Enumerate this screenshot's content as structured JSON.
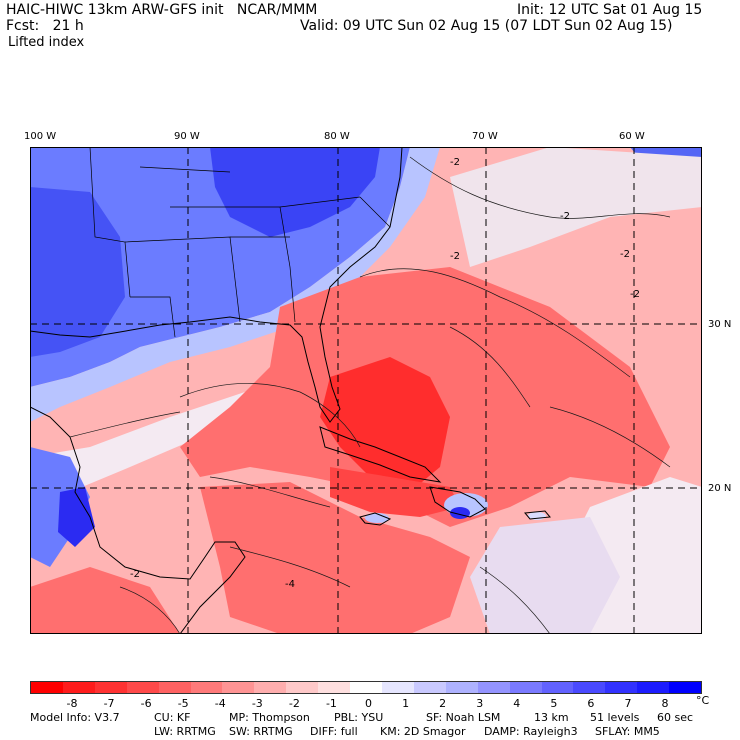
{
  "header": {
    "title_left": "HAIC-HIWC 13km ARW-GFS init   NCAR/MMM",
    "init": "Init: 12 UTC Sat 01 Aug 15",
    "fcst": "Fcst:   21 h",
    "valid": "Valid: 09 UTC Sun 02 Aug 15 (07 LDT Sun 02 Aug 15)",
    "field": "Lifted index"
  },
  "map": {
    "lon_labels": [
      "100 W",
      "90 W",
      "80 W",
      "70 W",
      "60 W"
    ],
    "lat_labels": [
      "30 N",
      "20 N"
    ],
    "contour_labels": [
      "-2",
      "-2",
      "-2",
      "-2",
      "-2",
      "-2",
      "-4"
    ],
    "colors": {
      "strong_red": "#ff2d2d",
      "mid_red": "#ff6f6f",
      "light_red": "#ffb4b4",
      "neutral": "#f4eaf2",
      "light_blue": "#b8c4ff",
      "mid_blue": "#6b7cff",
      "strong_blue": "#2b2bf2"
    }
  },
  "colorbar": {
    "labels": [
      "-8",
      "-7",
      "-6",
      "-5",
      "-4",
      "-3",
      "-2",
      "-1",
      "0",
      "1",
      "2",
      "3",
      "4",
      "5",
      "6",
      "7",
      "8"
    ],
    "unit": "°C",
    "colors": [
      "#ff0000",
      "#ff1c1c",
      "#ff3232",
      "#ff4a4a",
      "#ff6262",
      "#ff7a7a",
      "#ff9494",
      "#ffaeae",
      "#ffc9c9",
      "#ffe0e0",
      "#ffffff",
      "#e6e6ff",
      "#c9c9ff",
      "#aeb2ff",
      "#9494ff",
      "#7a7aff",
      "#6262ff",
      "#4a4aff",
      "#3232ff",
      "#1c1cff",
      "#0000ff"
    ]
  },
  "model_info": {
    "line1": [
      "Model Info: V3.7",
      "CU: KF",
      "MP: Thompson",
      "PBL: YSU",
      "SF: Noah LSM",
      "13 km",
      "51 levels",
      "60 sec"
    ],
    "line2": [
      "LW: RRTMG",
      "SW: RRTMG",
      "DIFF: full",
      "KM: 2D Smagor",
      "DAMP: Rayleigh3",
      "SFLAY: MM5"
    ]
  }
}
